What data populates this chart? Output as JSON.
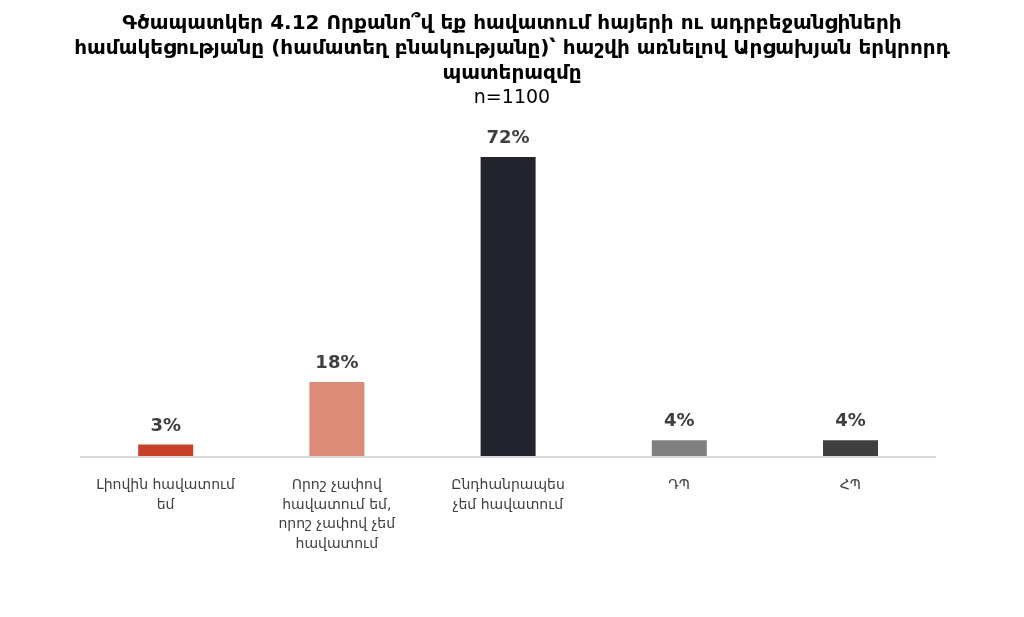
{
  "chart_data": {
    "type": "bar",
    "title": "Գծապատկեր 4.12 Որքանո՞վ եք հավատում հայերի ու ադրբեջանցիների համակեցությանը (համատեղ բնակությանը)՝ հաշվի առնելով Արցախյան երկրորդ պատերազմը",
    "subtitle": "n=1100",
    "categories": [
      "Լիովին հավատում եմ",
      "Որոշ չափով հավատում եմ, որոշ չափով չեմ հավատում",
      "Ընդհանրապես չեմ հավատում",
      "ԴՊ",
      "ՀՊ"
    ],
    "values": [
      3,
      18,
      72,
      4,
      4
    ],
    "colors": [
      "#c8402b",
      "#dc8b79",
      "#23252e",
      "#808080",
      "#3f3f3f"
    ],
    "value_labels": [
      "3%",
      "18%",
      "72%",
      "4%",
      "4%"
    ]
  }
}
